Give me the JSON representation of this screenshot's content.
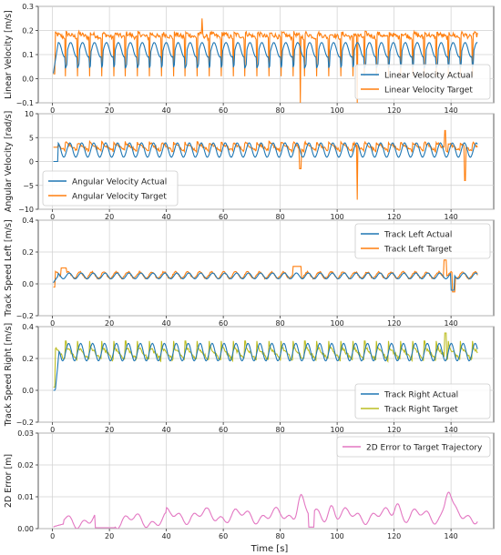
{
  "x_axis": {
    "label": "Time [s]",
    "range": [
      -5,
      155
    ],
    "ticks": [
      0,
      20,
      40,
      60,
      80,
      100,
      120,
      140
    ],
    "tick_labels": [
      "0",
      "20",
      "40",
      "60",
      "80",
      "100",
      "120",
      "140"
    ]
  },
  "chart_data": [
    {
      "type": "line",
      "ylabel": "Linear Velocity [m/s]",
      "ylim": [
        -0.1,
        0.3
      ],
      "yticks": [
        -0.1,
        0.0,
        0.1,
        0.2,
        0.3
      ],
      "ytick_labels": [
        "−0.1",
        "0.0",
        "0.1",
        "0.2",
        "0.3"
      ],
      "grid": true,
      "legend": "bottom-right",
      "series": [
        {
          "name": "Linear Velocity Actual",
          "color": "#1f77b4",
          "kind": "linvel_actual"
        },
        {
          "name": "Linear Velocity Target",
          "color": "#ff7f0e",
          "kind": "linvel_target"
        }
      ]
    },
    {
      "type": "line",
      "ylabel": "Angular Velocity [rad/s]",
      "ylim": [
        -10,
        10
      ],
      "yticks": [
        -10,
        -5,
        0,
        5,
        10
      ],
      "ytick_labels": [
        "−10",
        "−5",
        "0",
        "5",
        "10"
      ],
      "grid": true,
      "legend": "bottom-left",
      "series": [
        {
          "name": "Angular Velocity Actual",
          "color": "#1f77b4",
          "kind": "angvel_actual"
        },
        {
          "name": "Angular Velocity Target",
          "color": "#ff7f0e",
          "kind": "angvel_target"
        }
      ]
    },
    {
      "type": "line",
      "ylabel": "Track Speed Left [m/s]",
      "ylim": [
        -0.2,
        0.4
      ],
      "yticks": [
        -0.2,
        0.0,
        0.2,
        0.4
      ],
      "ytick_labels": [
        "−0.2",
        "0.0",
        "0.2",
        "0.4"
      ],
      "grid": true,
      "legend": "top-right",
      "series": [
        {
          "name": "Track Left Actual",
          "color": "#1f77b4",
          "kind": "left_actual"
        },
        {
          "name": "Track Left Target",
          "color": "#ff7f0e",
          "kind": "left_target"
        }
      ]
    },
    {
      "type": "line",
      "ylabel": "Track Speed Right [m/s]",
      "ylim": [
        -0.2,
        0.4
      ],
      "yticks": [
        -0.2,
        0.0,
        0.2,
        0.4
      ],
      "ytick_labels": [
        "−0.2",
        "0.0",
        "0.2",
        "0.4"
      ],
      "grid": true,
      "legend": "bottom-right",
      "series": [
        {
          "name": "Track Right Actual",
          "color": "#1f77b4",
          "kind": "right_actual"
        },
        {
          "name": "Track Right Target",
          "color": "#bcbd22",
          "kind": "right_target"
        }
      ]
    },
    {
      "type": "line",
      "ylabel": "2D Error [m]",
      "ylim": [
        0.0,
        0.03
      ],
      "yticks": [
        0.0,
        0.01,
        0.02,
        0.03
      ],
      "ytick_labels": [
        "0.00",
        "0.01",
        "0.02",
        "0.03"
      ],
      "grid": true,
      "legend": "top-right",
      "series": [
        {
          "name": "2D Error to Target Trajectory",
          "color": "#e377c2",
          "kind": "error_2d"
        }
      ]
    }
  ]
}
